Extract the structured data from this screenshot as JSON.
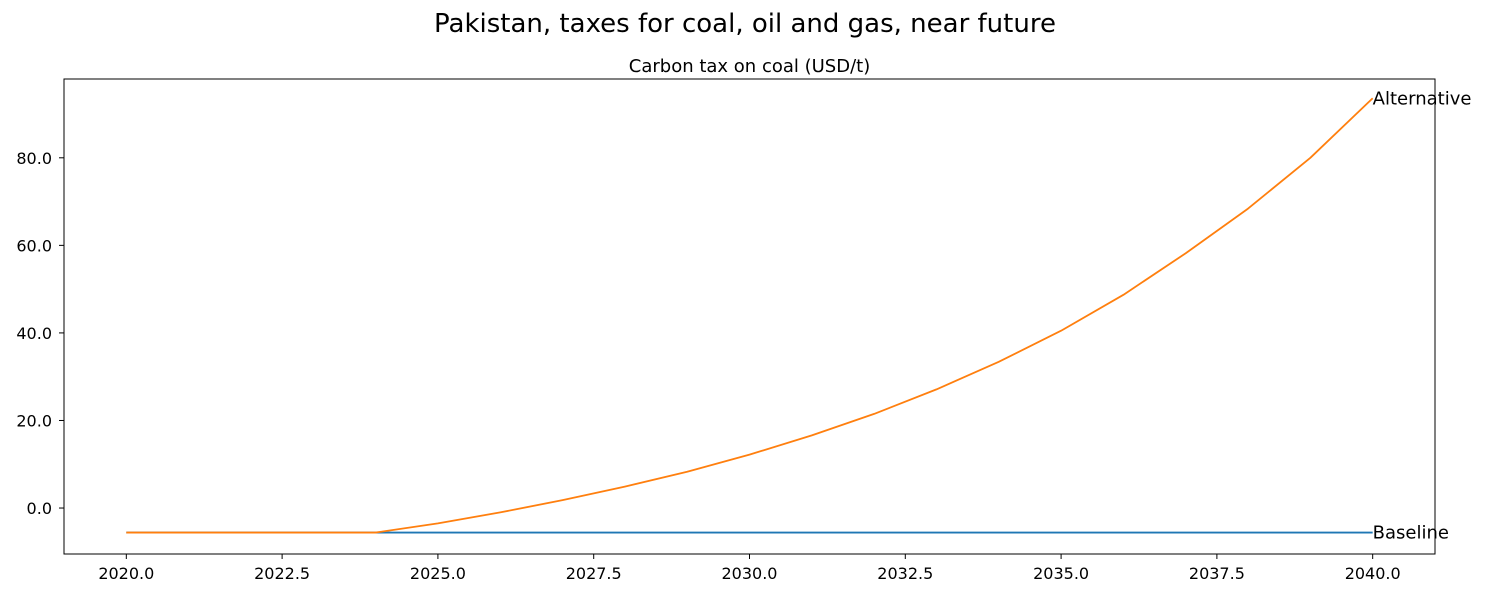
{
  "figure": {
    "suptitle": "Pakistan, taxes for coal, oil and gas, near future"
  },
  "chart_data": {
    "type": "line",
    "title": "Carbon tax on coal (USD/t)",
    "xlabel": "",
    "ylabel": "",
    "xlim": [
      2019.0,
      2041.0
    ],
    "ylim": [
      -10.5,
      98.0
    ],
    "x_ticks": [
      2020.0,
      2022.5,
      2025.0,
      2027.5,
      2030.0,
      2032.5,
      2035.0,
      2037.5,
      2040.0
    ],
    "x_tick_labels": [
      "2020.0",
      "2022.5",
      "2025.0",
      "2027.5",
      "2030.0",
      "2032.5",
      "2035.0",
      "2037.5",
      "2040.0"
    ],
    "y_ticks": [
      0,
      20,
      40,
      60,
      80
    ],
    "y_tick_labels": [
      "0.0",
      "20.0",
      "40.0",
      "60.0",
      "80.0"
    ],
    "grid": false,
    "x": [
      2020,
      2021,
      2022,
      2023,
      2024,
      2025,
      2026,
      2027,
      2028,
      2029,
      2030,
      2031,
      2032,
      2033,
      2034,
      2035,
      2036,
      2037,
      2038,
      2039,
      2040
    ],
    "series": [
      {
        "name": "Baseline",
        "color": "#1f77b4",
        "values": [
          -5.6,
          -5.6,
          -5.6,
          -5.6,
          -5.6,
          -5.6,
          -5.6,
          -5.6,
          -5.6,
          -5.6,
          -5.6,
          -5.6,
          -5.6,
          -5.6,
          -5.6,
          -5.6,
          -5.6,
          -5.6,
          -5.6,
          -5.6,
          -5.6
        ]
      },
      {
        "name": "Alternative",
        "color": "#ff7f0e",
        "values": [
          -5.6,
          -5.6,
          -5.6,
          -5.6,
          -5.6,
          -3.5,
          -1.0,
          1.8,
          4.9,
          8.3,
          12.2,
          16.6,
          21.5,
          27.1,
          33.4,
          40.5,
          48.7,
          58.2,
          68.4,
          80.0,
          93.6
        ]
      }
    ]
  }
}
